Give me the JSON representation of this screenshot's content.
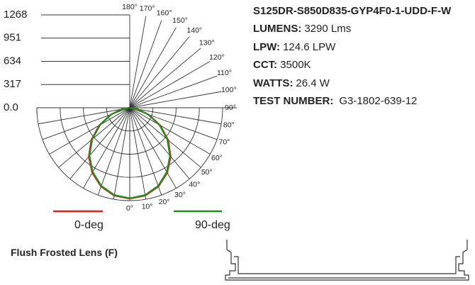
{
  "chart_data": {
    "type": "polar",
    "angles": [
      0,
      10,
      20,
      30,
      40,
      50,
      60,
      70,
      80,
      90
    ],
    "series": [
      {
        "name": "0-deg",
        "color": "#e02020",
        "values": [
          1240,
          1218,
          1145,
          1025,
          870,
          685,
          482,
          280,
          110,
          10
        ]
      },
      {
        "name": "90-deg",
        "color": "#1f8f1f",
        "values": [
          1236,
          1210,
          1135,
          1012,
          855,
          668,
          468,
          270,
          104,
          8
        ]
      }
    ],
    "rlim": [
      0,
      1268
    ],
    "rticks": [
      {
        "value": 0,
        "label": "0.0"
      },
      317,
      634,
      951,
      1268
    ],
    "angle_ticks": [
      {
        "value": 0,
        "label": "0°"
      },
      {
        "value": 10,
        "label": "10°"
      },
      {
        "value": 20,
        "label": "20°"
      },
      {
        "value": 30,
        "label": "30°"
      },
      {
        "value": 40,
        "label": "40°"
      },
      {
        "value": 50,
        "label": "50°"
      },
      {
        "value": 60,
        "label": "60°"
      },
      {
        "value": 70,
        "label": "70°"
      },
      {
        "value": 80,
        "label": "80°"
      },
      {
        "value": 90,
        "label": "90°"
      },
      {
        "value": 100,
        "label": "100°"
      },
      {
        "value": 110,
        "label": "110°"
      },
      {
        "value": 120,
        "label": "120°"
      },
      {
        "value": 130,
        "label": "130°"
      },
      {
        "value": 140,
        "label": "140°"
      },
      {
        "value": 150,
        "label": "150°"
      },
      {
        "value": 160,
        "label": "160°"
      },
      {
        "value": 170,
        "label": "170°"
      },
      {
        "value": 180,
        "label": "180°"
      }
    ]
  },
  "specs": {
    "model": "S125DR-S850D835-GYP4F0-1-UDD-F-W",
    "rows": [
      [
        "LUMENS:",
        "3290 Lms"
      ],
      [
        "LPW:",
        "124.6 LPW"
      ],
      [
        "CCT:",
        "3500K"
      ],
      [
        "WATTS:",
        "26.4 W"
      ],
      [
        "TEST NUMBER:",
        "G3-1802-639-12"
      ]
    ]
  },
  "lens": "Flush Frosted Lens (F)"
}
